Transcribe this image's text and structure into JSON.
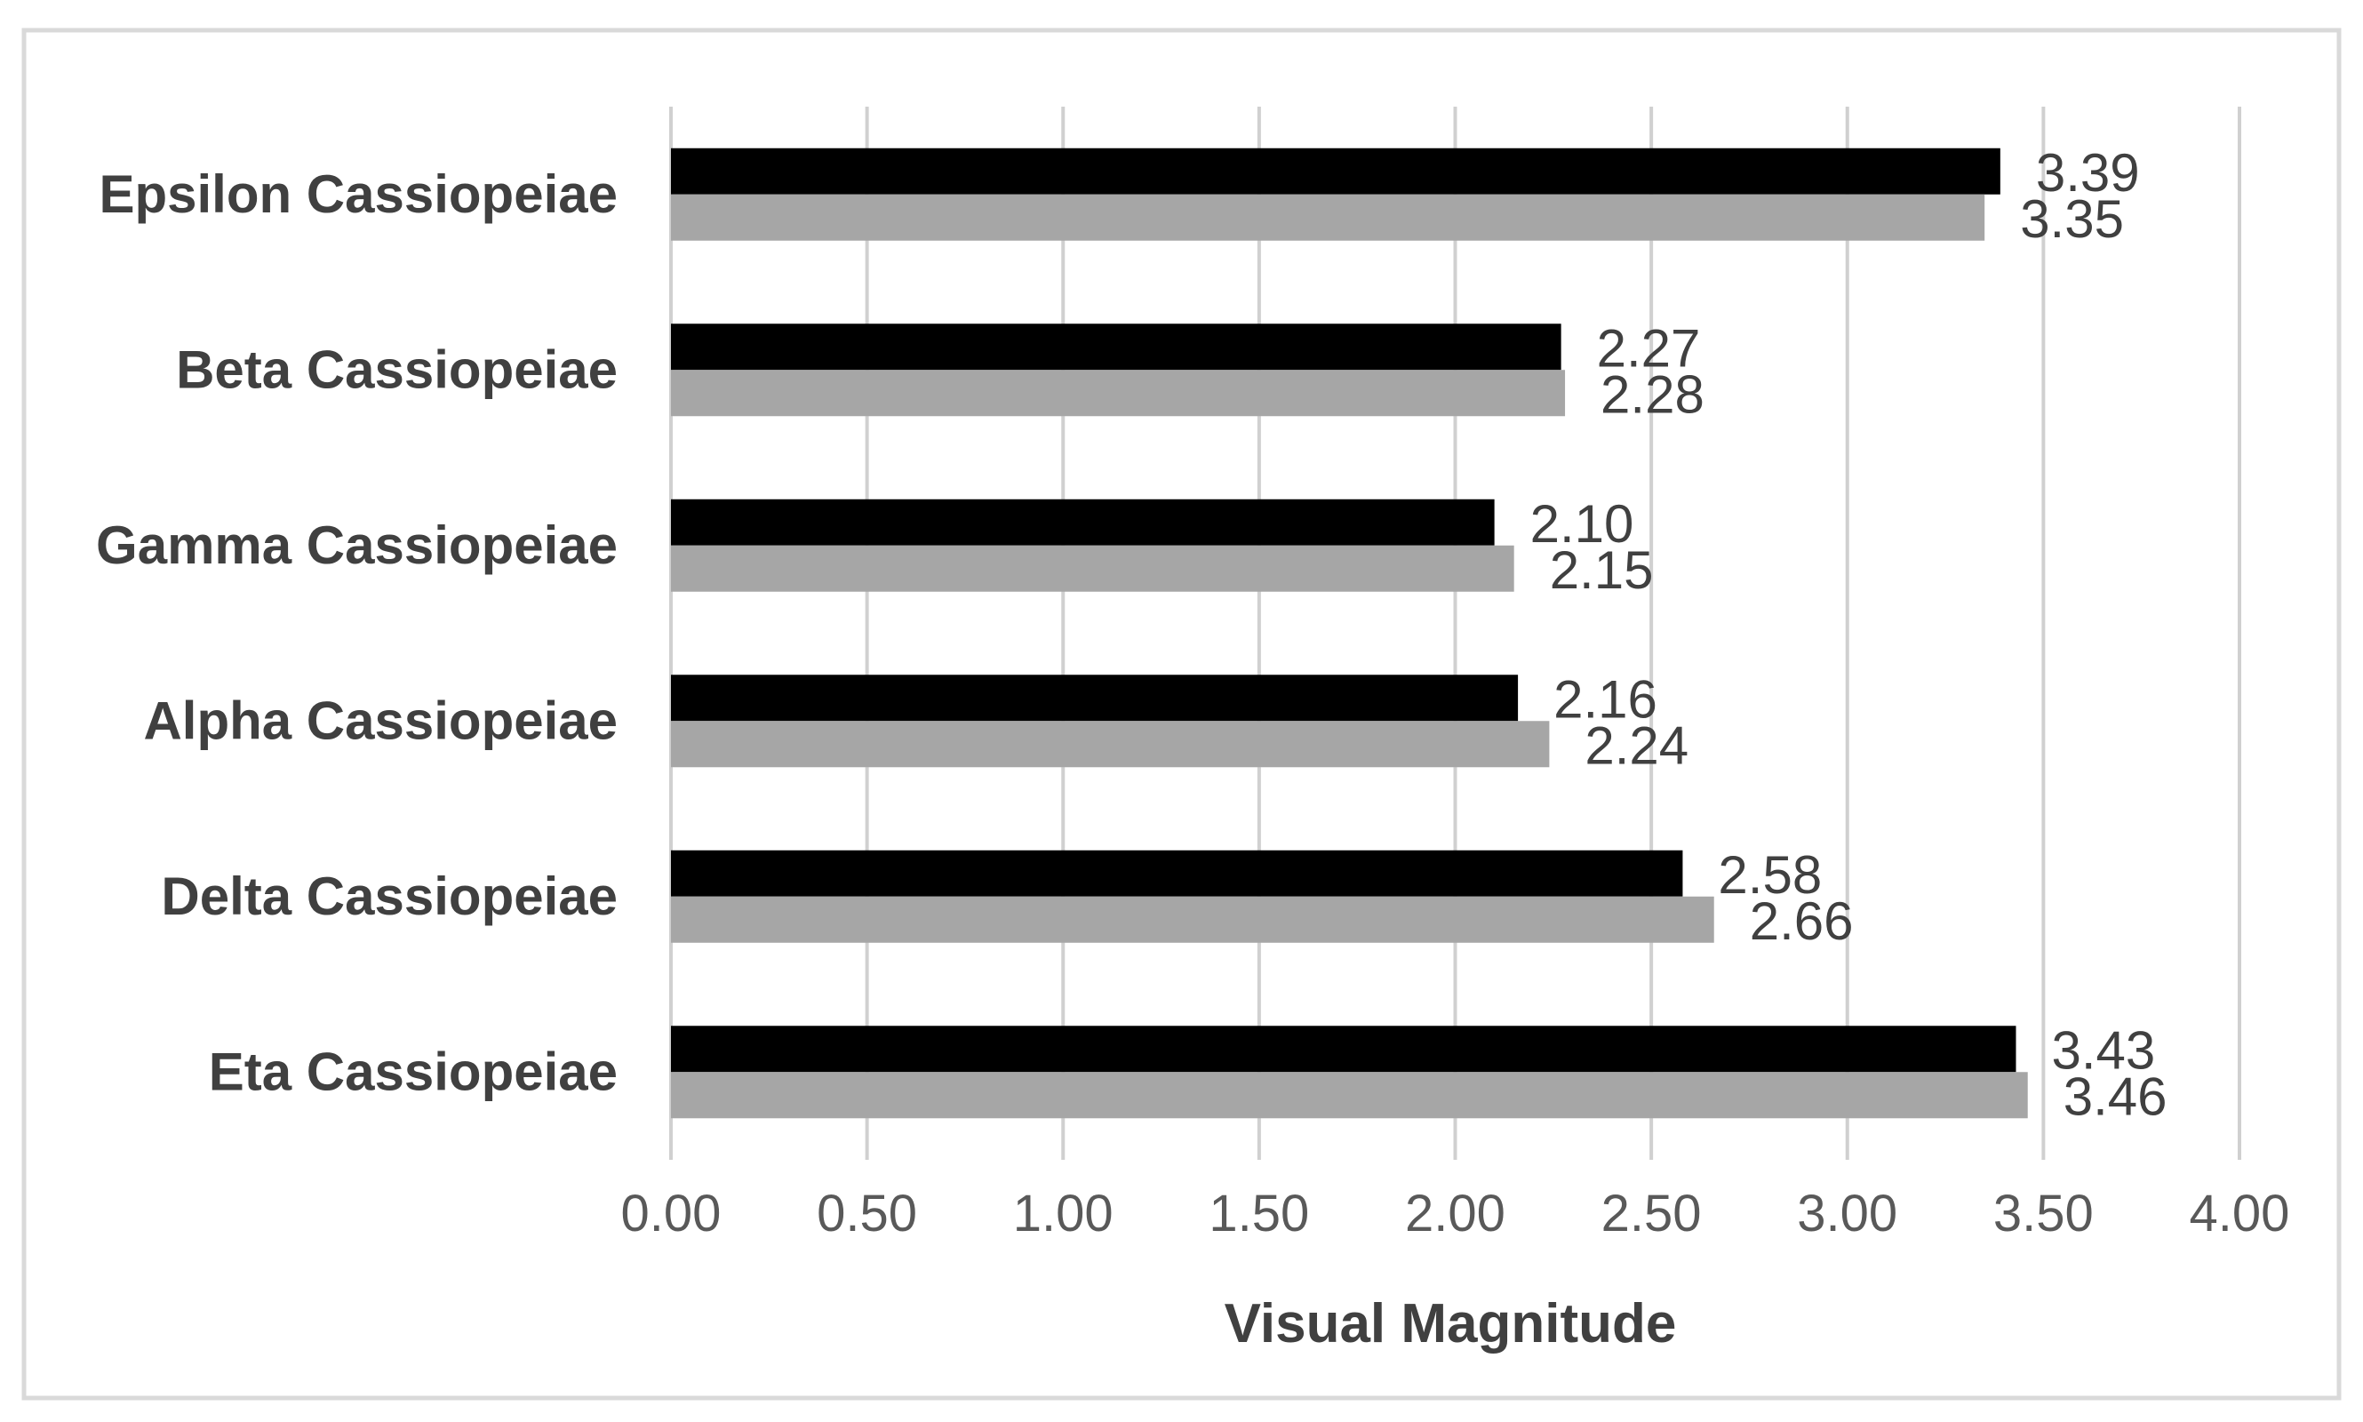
{
  "chart_data": {
    "type": "bar",
    "orientation": "horizontal",
    "categories": [
      "Eta Cassiopeiae",
      "Delta Cassiopeiae",
      "Alpha Cassiopeiae",
      "Gamma Cassiopeiae",
      "Beta Cassiopeiae",
      "Epsilon Cassiopeiae"
    ],
    "series": [
      {
        "values": [
          3.43,
          2.58,
          2.16,
          2.1,
          2.27,
          3.39
        ],
        "labels": [
          "3.43",
          "2.58",
          "2.16",
          "2.10",
          "2.27",
          "3.39"
        ],
        "color": "#000000"
      },
      {
        "values": [
          3.46,
          2.66,
          2.24,
          2.15,
          2.28,
          3.35
        ],
        "labels": [
          "3.46",
          "2.66",
          "2.24",
          "2.15",
          "2.28",
          "3.35"
        ],
        "color": "#a6a6a6"
      }
    ],
    "xlabel": "Visual Magnitude",
    "ylabel": "",
    "title": "",
    "xlim": [
      0,
      4
    ],
    "xticks": [
      0,
      0.5,
      1,
      1.5,
      2,
      2.5,
      3,
      3.5,
      4
    ],
    "xtick_labels": [
      "0.00",
      "0.50",
      "1.00",
      "1.50",
      "2.00",
      "2.50",
      "3.00",
      "3.50",
      "4.00"
    ],
    "grid": "vertical",
    "legend": "none",
    "colors": {
      "gridline": "#d0d0d0",
      "frame": "#d9d9d9"
    }
  }
}
